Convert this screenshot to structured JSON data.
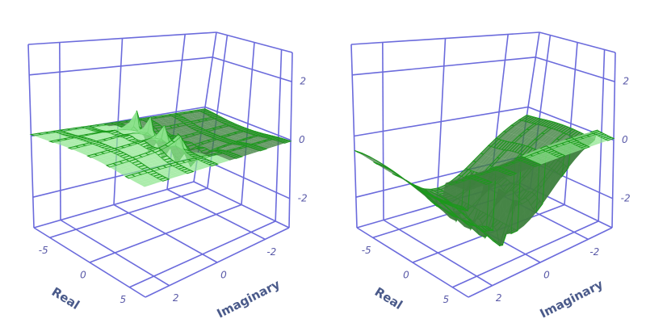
{
  "chart_data": [
    {
      "type": "surface3d",
      "xlabel": "Real",
      "ylabel": "Imaginary",
      "xlim": [
        -7,
        7
      ],
      "ylim": [
        -3,
        3
      ],
      "zlim": [
        -3,
        3
      ],
      "xticks": [
        -5,
        0,
        5
      ],
      "yticks": [
        -2,
        0,
        2
      ],
      "zticks": [
        -2,
        0,
        2
      ],
      "grid": true,
      "color": "#6b6bdc"
    },
    {
      "type": "surface3d",
      "xlabel": "Real",
      "ylabel": "Imaginary",
      "xlim": [
        -7,
        7
      ],
      "ylim": [
        -3,
        3
      ],
      "zlim": [
        -3,
        3
      ],
      "xticks": [
        -5,
        0,
        5
      ],
      "yticks": [
        -2,
        0,
        2
      ],
      "zticks": [
        -2,
        0,
        2
      ],
      "grid": true,
      "color": "#6b6bdc"
    }
  ]
}
